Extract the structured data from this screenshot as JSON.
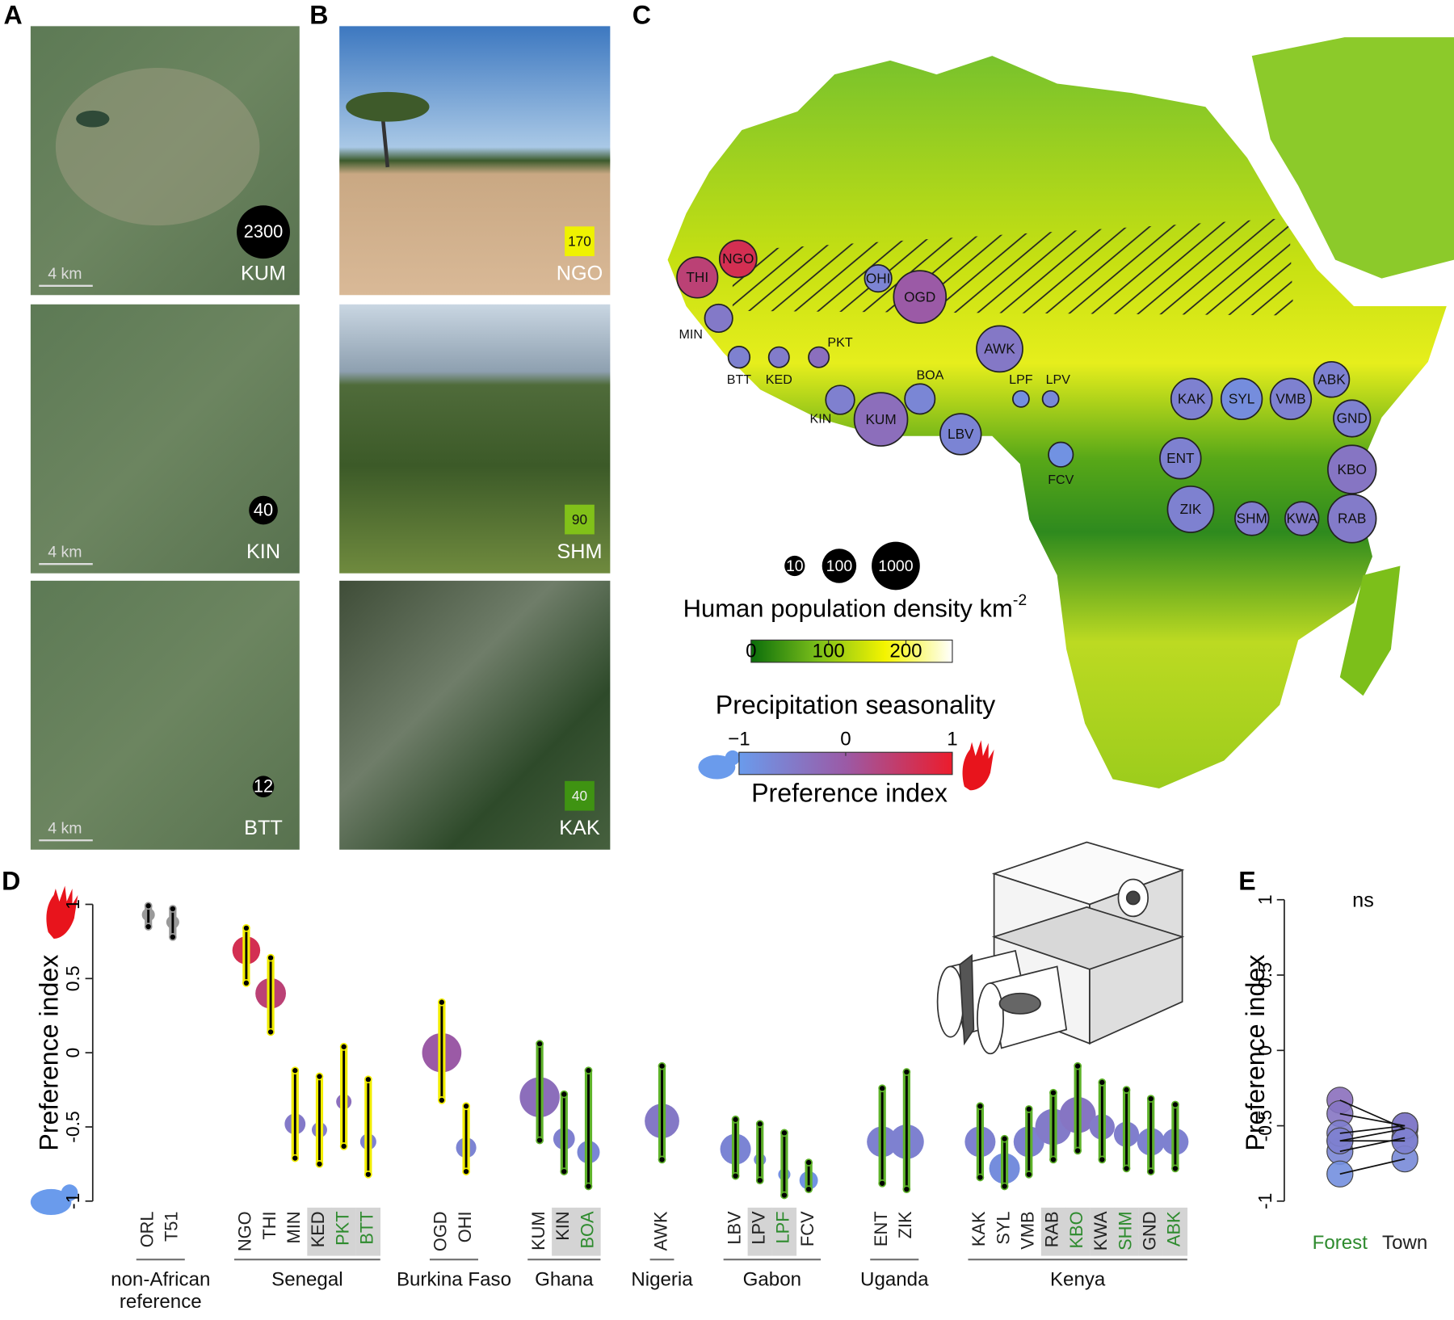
{
  "panel_labels": [
    "A",
    "B",
    "C",
    "D",
    "E"
  ],
  "satellite": [
    {
      "site": "KUM",
      "density": 2300,
      "scale": "4 km"
    },
    {
      "site": "KIN",
      "density": 40,
      "scale": "4 km"
    },
    {
      "site": "BTT",
      "density": 12,
      "scale": "4 km"
    }
  ],
  "photos": [
    {
      "site": "NGO",
      "seasonality": 170
    },
    {
      "site": "SHM",
      "seasonality": 90
    },
    {
      "site": "KAK",
      "seasonality": 40
    }
  ],
  "map": {
    "density_legend": {
      "values": [
        10,
        100,
        1000
      ],
      "title": "Human population density km",
      "title_sup": "-2"
    },
    "precip_legend": {
      "title": "Precipitation seasonality",
      "lim": [
        0,
        260
      ],
      "ticks": [
        0,
        100,
        200
      ],
      "colors": [
        "#0b6e0b",
        "#7cbf1a",
        "#f4f400",
        "#ffffff"
      ]
    },
    "pref_legend": {
      "title": "Preference index",
      "lim": [
        -1,
        1
      ],
      "ticks": [
        {
          "value": -1,
          "label": "−1"
        },
        0,
        1
      ],
      "colors": [
        "#6a9bec",
        "#9b5aa6",
        "#ec1c2c"
      ]
    }
  },
  "chart_data": [
    {
      "type": "dot-errorbar",
      "ylabel": "Preference index",
      "ylim": [
        -1,
        1
      ],
      "yticks": [
        -1,
        -0.5,
        0,
        0.5,
        1
      ],
      "groups": [
        {
          "name": "non-African\nreference",
          "bar_color": "#9a9a9a",
          "categories": [
            "ORL",
            "T51"
          ],
          "values": [
            0.93,
            0.88
          ],
          "upper": [
            0.99,
            0.97
          ],
          "lower": [
            0.85,
            0.78
          ],
          "density": [
            null,
            null
          ],
          "label_colors": [
            "#222222",
            "#222222"
          ],
          "boxed": [
            false,
            false
          ]
        },
        {
          "name": "Senegal",
          "bar_color": "#f2ee00",
          "categories": [
            "NGO",
            "THI",
            "MIN",
            "KED",
            "PKT",
            "BTT"
          ],
          "values": [
            0.69,
            0.4,
            -0.48,
            -0.52,
            -0.33,
            -0.6
          ],
          "upper": [
            0.84,
            0.64,
            -0.12,
            -0.16,
            0.04,
            -0.18
          ],
          "lower": [
            0.47,
            0.14,
            -0.71,
            -0.75,
            -0.63,
            -0.82
          ],
          "density": [
            160,
            290,
            34,
            10,
            10,
            12
          ],
          "label_colors": [
            "#222222",
            "#222222",
            "#222222",
            "#222222",
            "#2e8b2e",
            "#2e8b2e"
          ],
          "boxed": [
            false,
            false,
            false,
            true,
            true,
            true
          ]
        },
        {
          "name": "Burkina Faso",
          "bar_color": "#f2ee00",
          "categories": [
            "OGD",
            "OHI"
          ],
          "values": [
            0,
            -0.64
          ],
          "upper": [
            0.34,
            -0.36
          ],
          "lower": [
            -0.32,
            -0.8
          ],
          "density": [
            2000,
            30
          ],
          "label_colors": [
            "#222222",
            "#222222"
          ],
          "boxed": [
            false,
            false
          ]
        },
        {
          "name": "Ghana",
          "bar_color": "#5eb22a",
          "categories": [
            "KUM",
            "KIN",
            "BOA"
          ],
          "values": [
            -0.3,
            -0.58,
            -0.67
          ],
          "upper": [
            0.06,
            -0.28,
            -0.12
          ],
          "lower": [
            -0.59,
            -0.8,
            -0.9
          ],
          "density": [
            2300,
            40,
            50
          ],
          "label_colors": [
            "#222222",
            "#222222",
            "#2e8b2e"
          ],
          "boxed": [
            false,
            true,
            true
          ]
        },
        {
          "name": "Nigeria",
          "bar_color": "#5eb22a",
          "categories": [
            "AWK"
          ],
          "values": [
            -0.46
          ],
          "upper": [
            -0.09
          ],
          "lower": [
            -0.72
          ],
          "density": [
            700
          ],
          "label_colors": [
            "#222222"
          ],
          "boxed": [
            false
          ]
        },
        {
          "name": "Gabon",
          "bar_color": "#5eb22a",
          "categories": [
            "LBV",
            "LPV",
            "LPF",
            "FCV"
          ],
          "values": [
            -0.65,
            -0.72,
            -0.82,
            -0.86
          ],
          "upper": [
            -0.45,
            -0.48,
            -0.54,
            -0.74
          ],
          "lower": [
            -0.83,
            -0.86,
            -0.96,
            -0.92
          ],
          "density": [
            300,
            5,
            5,
            20
          ],
          "label_colors": [
            "#222222",
            "#222222",
            "#2e8b2e",
            "#222222"
          ],
          "boxed": [
            false,
            true,
            true,
            false
          ]
        },
        {
          "name": "Uganda",
          "bar_color": "#5eb22a",
          "categories": [
            "ENT",
            "ZIK"
          ],
          "values": [
            -0.6,
            -0.6
          ],
          "upper": [
            -0.24,
            -0.13
          ],
          "lower": [
            -0.88,
            -0.92
          ],
          "density": [
            300,
            700
          ],
          "label_colors": [
            "#222222",
            "#222222"
          ],
          "boxed": [
            false,
            false
          ]
        },
        {
          "name": "Kenya",
          "bar_color": "#5eb22a",
          "categories": [
            "KAK",
            "SYL",
            "VMB",
            "RAB",
            "KBO",
            "KWA",
            "SHM",
            "GND",
            "ABK"
          ],
          "values": [
            -0.6,
            -0.78,
            -0.6,
            -0.5,
            -0.42,
            -0.5,
            -0.55,
            -0.6,
            -0.6
          ],
          "upper": [
            -0.36,
            -0.58,
            -0.38,
            -0.27,
            -0.09,
            -0.2,
            -0.25,
            -0.31,
            -0.35
          ],
          "lower": [
            -0.84,
            -0.9,
            -0.82,
            -0.72,
            -0.66,
            -0.72,
            -0.78,
            -0.8,
            -0.78
          ],
          "density": [
            300,
            300,
            300,
            1000,
            1000,
            90,
            90,
            150,
            120
          ],
          "label_colors": [
            "#222222",
            "#222222",
            "#222222",
            "#222222",
            "#2e8b2e",
            "#222222",
            "#2e8b2e",
            "#222222",
            "#2e8b2e"
          ],
          "boxed": [
            false,
            false,
            false,
            true,
            true,
            true,
            true,
            true,
            true
          ]
        }
      ]
    },
    {
      "type": "paired-dot",
      "title": "ns",
      "ylabel": "Preference index",
      "ylim": [
        -1,
        1
      ],
      "yticks": [
        -1,
        -0.5,
        0,
        0.5,
        1
      ],
      "categories": [
        "Forest",
        "Town"
      ],
      "category_colors": [
        "#2e8b2e",
        "#222222"
      ],
      "values": [
        [
          -0.33,
          -0.52
        ],
        [
          -0.6,
          -0.52
        ],
        [
          -0.67,
          -0.58
        ],
        [
          -0.82,
          -0.72
        ],
        [
          -0.42,
          -0.5
        ],
        [
          -0.55,
          -0.5
        ],
        [
          -0.6,
          -0.6
        ]
      ]
    }
  ]
}
